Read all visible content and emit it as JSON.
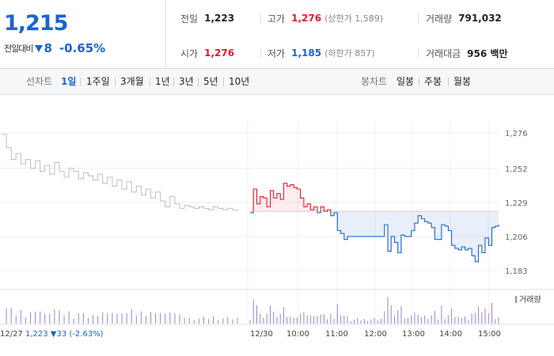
{
  "summary": {
    "current_price": "1,215",
    "change_label": "전일대비",
    "change_amount": "8",
    "change_percent": "-0.65%",
    "prev_close_label": "전일",
    "prev_close": "1,223",
    "high_label": "고가",
    "high": "1,276",
    "high_sub": "(상한가 1,589)",
    "volume_label": "거래량",
    "volume": "791,032",
    "open_label": "시가",
    "open": "1,276",
    "low_label": "저가",
    "low": "1,185",
    "low_sub": "(하한가 857)",
    "amount_label": "거래대금",
    "amount": "956 백만"
  },
  "tabs": {
    "line_label": "선차트",
    "line_items": [
      "1일",
      "1주일",
      "3개월",
      "1년",
      "3년",
      "5년",
      "10년"
    ],
    "active_line": "1일",
    "candle_label": "봉차트",
    "candle_items": [
      "일봉",
      "주봉",
      "월봉"
    ]
  },
  "colors": {
    "up": "#e5192b",
    "down": "#1b63d4",
    "prev_day": "#bdbdbd",
    "volume": "#9b84c4"
  },
  "chart_data": {
    "type": "line",
    "y_ticks": [
      "1,276",
      "1,252",
      "1,229",
      "1,206",
      "1,183"
    ],
    "ylim": [
      1175,
      1285
    ],
    "reference_price": 1223,
    "x_labels": [
      "12/27",
      "12/30",
      "10:00",
      "11:00",
      "12:00",
      "13:00",
      "14:00",
      "15:00"
    ],
    "prev_day_note": "12/27  1,223 ▼33 (-2.63%)",
    "volume_legend": "거래량",
    "prev_day_series": [
      1275,
      1266,
      1258,
      1262,
      1255,
      1258,
      1252,
      1257,
      1250,
      1254,
      1248,
      1256,
      1250,
      1246,
      1252,
      1250,
      1245,
      1249,
      1247,
      1244,
      1248,
      1242,
      1246,
      1240,
      1244,
      1238,
      1243,
      1236,
      1240,
      1234,
      1238,
      1232,
      1236,
      1230,
      1226,
      1233,
      1228,
      1225,
      1227,
      1226,
      1225,
      1226,
      1225,
      1224,
      1226,
      1225,
      1224,
      1225,
      1224,
      1223
    ],
    "today_series": [
      1222,
      1238,
      1228,
      1233,
      1232,
      1226,
      1237,
      1232,
      1235,
      1231,
      1242,
      1240,
      1241,
      1239,
      1238,
      1232,
      1226,
      1228,
      1224,
      1226,
      1222,
      1226,
      1223,
      1224,
      1220,
      1222,
      1210,
      1208,
      1204,
      1206,
      1206,
      1206,
      1206,
      1206,
      1206,
      1206,
      1206,
      1206,
      1206,
      1206,
      1214,
      1196,
      1206,
      1202,
      1195,
      1207,
      1206,
      1206,
      1210,
      1215,
      1220,
      1218,
      1216,
      1215,
      1212,
      1204,
      1204,
      1214,
      1213,
      1210,
      1200,
      1198,
      1197,
      1199,
      1197,
      1198,
      1193,
      1189,
      1200,
      1195,
      1205,
      1200,
      1212,
      1213,
      1214
    ]
  }
}
